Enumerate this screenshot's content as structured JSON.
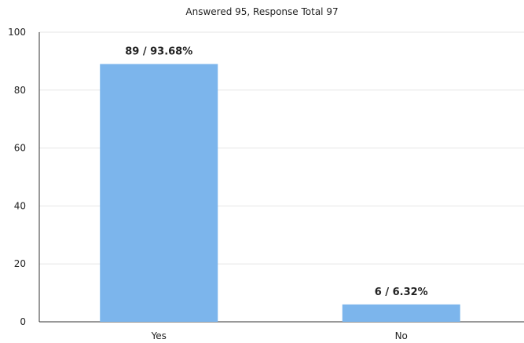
{
  "chart_data": {
    "type": "bar",
    "title": "Answered 95, Response Total 97",
    "categories": [
      "Yes",
      "No"
    ],
    "values": [
      89,
      6
    ],
    "data_labels": [
      "89 / 93.68%",
      "6 / 6.32%"
    ],
    "ylim": [
      0,
      100
    ],
    "yticks": [
      "0",
      "20",
      "40",
      "60",
      "80",
      "100"
    ],
    "xlabel": "",
    "ylabel": "",
    "grid": true,
    "legend": "none",
    "colors": {
      "bar": "#7cb5ec",
      "grid": "#e6e6e6",
      "axis": "#333333",
      "text": "#222222"
    }
  }
}
